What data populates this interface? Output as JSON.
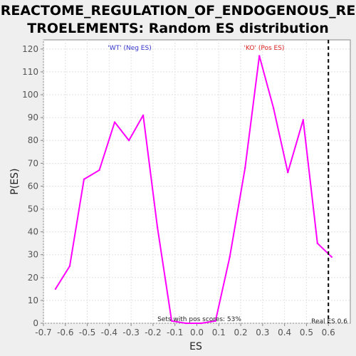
{
  "chart_data": {
    "type": "line",
    "title_line1": "REACTOME_REGULATION_OF_ENDOGENOUS_RE",
    "title_line2": "TROELEMENTS: Random ES distribution",
    "xlabel": "ES",
    "ylabel": "P(ES)",
    "xlim": [
      -0.7,
      0.7
    ],
    "ylim": [
      0,
      124
    ],
    "x_ticks": [
      "-0.7",
      "-0.6",
      "-0.5",
      "-0.4",
      "-0.3",
      "-0.2",
      "-0.1",
      "0.0",
      "0.1",
      "0.2",
      "0.3",
      "0.4",
      "0.5",
      "0.6"
    ],
    "y_ticks": [
      "0",
      "10",
      "20",
      "30",
      "40",
      "50",
      "60",
      "70",
      "80",
      "90",
      "100",
      "110",
      "120"
    ],
    "grid": true,
    "series": [
      {
        "color": "#ff00ff",
        "x": [
          -0.645,
          -0.58,
          -0.515,
          -0.445,
          -0.375,
          -0.31,
          -0.245,
          -0.18,
          -0.115,
          -0.05,
          0.02,
          0.085,
          0.15,
          0.22,
          0.285,
          0.35,
          0.415,
          0.485,
          0.55,
          0.615
        ],
        "y": [
          15,
          25,
          63,
          67,
          88,
          80,
          91,
          42,
          1,
          0,
          0,
          1,
          29,
          68,
          117,
          94,
          66,
          89,
          35,
          29
        ]
      }
    ],
    "real_es": 0.6,
    "annotations": {
      "neg_group": "'WT' (Neg ES)",
      "pos_group": "'KO' (Pos ES)",
      "neg_color": "#3333cc",
      "pos_color": "#dd2222",
      "pos_scores": "Sets with pos scores: 53%",
      "real_es_label": "Real ES 0.6"
    }
  }
}
